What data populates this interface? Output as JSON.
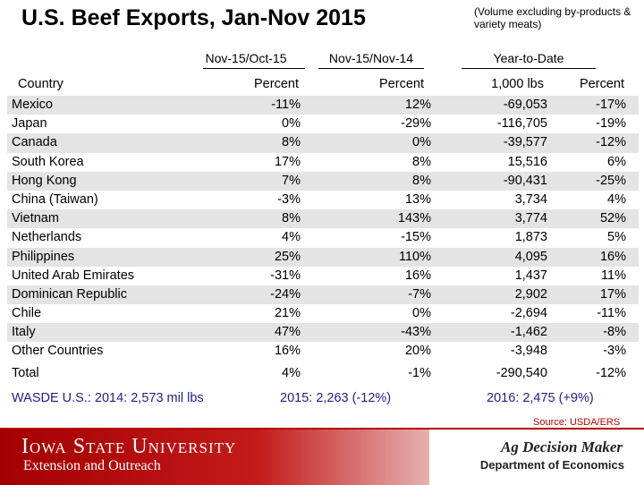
{
  "title": "U.S. Beef Exports, Jan-Nov 2015",
  "subtitle": "(Volume excluding by-products & variety meats)",
  "column_groups": [
    "Nov-15/Oct-15",
    "Nov-15/Nov-14",
    "Year-to-Date"
  ],
  "headers": {
    "country": "Country",
    "col1": "Percent",
    "col2": "Percent",
    "col3": "1,000 lbs",
    "col4": "Percent"
  },
  "rows": [
    {
      "country": "Mexico",
      "c1": "-11%",
      "c2": "12%",
      "c3": "-69,053",
      "c4": "-17%"
    },
    {
      "country": "Japan",
      "c1": "0%",
      "c2": "-29%",
      "c3": "-116,705",
      "c4": "-19%"
    },
    {
      "country": "Canada",
      "c1": "8%",
      "c2": "0%",
      "c3": "-39,577",
      "c4": "-12%"
    },
    {
      "country": "South Korea",
      "c1": "17%",
      "c2": "8%",
      "c3": "15,516",
      "c4": "6%"
    },
    {
      "country": "Hong Kong",
      "c1": "7%",
      "c2": "8%",
      "c3": "-90,431",
      "c4": "-25%"
    },
    {
      "country": "China (Taiwan)",
      "c1": "-3%",
      "c2": "13%",
      "c3": "3,734",
      "c4": "4%"
    },
    {
      "country": "Vietnam",
      "c1": "8%",
      "c2": "143%",
      "c3": "3,774",
      "c4": "52%"
    },
    {
      "country": "Netherlands",
      "c1": "4%",
      "c2": "-15%",
      "c3": "1,873",
      "c4": "5%"
    },
    {
      "country": "Philippines",
      "c1": "25%",
      "c2": "110%",
      "c3": "4,095",
      "c4": "16%"
    },
    {
      "country": "United Arab Emirates",
      "c1": "-31%",
      "c2": "16%",
      "c3": "1,437",
      "c4": "11%"
    },
    {
      "country": "Dominican Republic",
      "c1": "-24%",
      "c2": "-7%",
      "c3": "2,902",
      "c4": "17%"
    },
    {
      "country": "Chile",
      "c1": "21%",
      "c2": "0%",
      "c3": "-2,694",
      "c4": "-11%"
    },
    {
      "country": "Italy",
      "c1": "47%",
      "c2": "-43%",
      "c3": "-1,462",
      "c4": "-8%"
    },
    {
      "country": "Other Countries",
      "c1": "16%",
      "c2": "20%",
      "c3": "-3,948",
      "c4": "-3%"
    }
  ],
  "total": {
    "label": "Total",
    "c1": "4%",
    "c2": "-1%",
    "c3": "-290,540",
    "c4": "-12%"
  },
  "wasde": {
    "y2014": "WASDE U.S.: 2014: 2,573 mil lbs",
    "y2015": "2015: 2,263 (-12%)",
    "y2016": "2016: 2,475 (+9%)"
  },
  "source": "Source: USDA/ERS",
  "footer": {
    "university": "Iowa State University",
    "extension": "Extension and Outreach",
    "ag_decision_maker": "Ag Decision Maker",
    "department": "Department of Economics"
  },
  "colors": {
    "shade": "#e4e4e4",
    "wasde": "#1f1f8f",
    "source": "#c00000",
    "brand": "#b30000"
  }
}
